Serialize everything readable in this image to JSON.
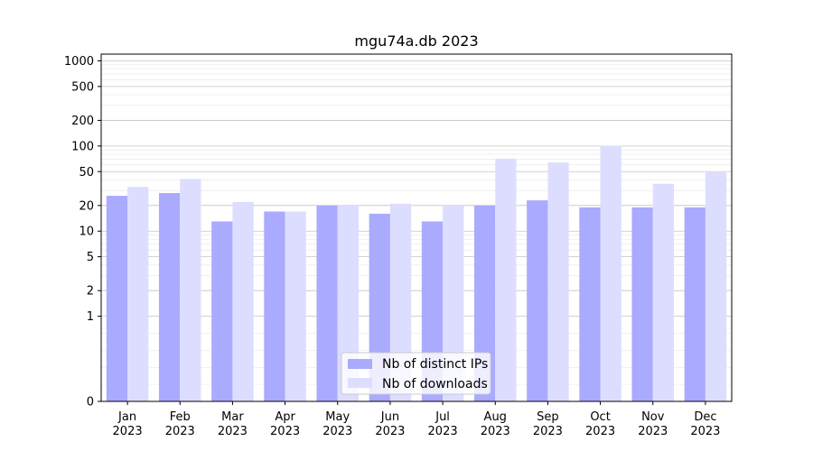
{
  "chart_data": {
    "type": "bar",
    "title": "mgu74a.db 2023",
    "xlabel": "",
    "ylabel": "",
    "yscale": "symlog",
    "ylim": [
      0,
      1200
    ],
    "yticks": [
      0,
      1,
      2,
      5,
      10,
      20,
      50,
      100,
      200,
      500,
      1000
    ],
    "ytick_labels": [
      "0",
      "1",
      "2",
      "5",
      "10",
      "20",
      "50",
      "100",
      "200",
      "500",
      "1000"
    ],
    "categories": [
      "Jan",
      "Feb",
      "Mar",
      "Apr",
      "May",
      "Jun",
      "Jul",
      "Aug",
      "Sep",
      "Oct",
      "Nov",
      "Dec"
    ],
    "category_year": "2023",
    "grid": true,
    "legend_position": "lower-center",
    "series": [
      {
        "name": "Nb of distinct IPs",
        "color": "#aaaaff",
        "values": [
          26,
          28,
          13,
          17,
          20,
          16,
          13,
          20,
          23,
          19,
          19,
          19
        ]
      },
      {
        "name": "Nb of downloads",
        "color": "#ddddff",
        "values": [
          33,
          41,
          22,
          17,
          20,
          21,
          20,
          71,
          64,
          101,
          36,
          49
        ]
      }
    ]
  }
}
